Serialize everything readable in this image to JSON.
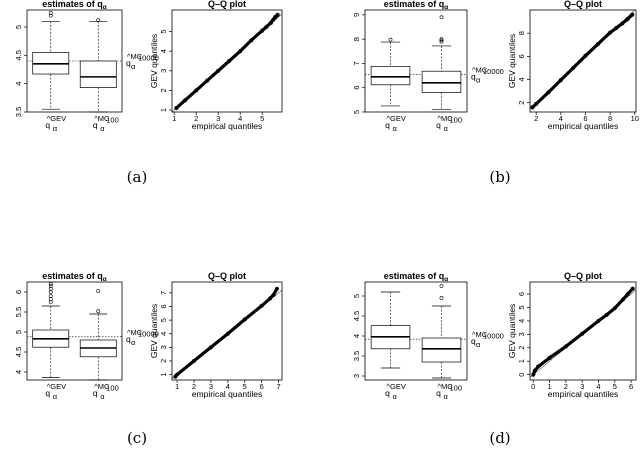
{
  "chart_data": [
    {
      "panel": "(a)",
      "boxplot": {
        "type": "box",
        "title": "estimates of q",
        "title_subscript": "α",
        "ylim": [
          3.5,
          5.3
        ],
        "yticks": [
          3.5,
          4.0,
          4.5,
          5.0
        ],
        "categories": [
          {
            "hat": "^GEV",
            "base": "q",
            "sub": "α"
          },
          {
            "hat": "^MC",
            "hat_sub": "100",
            "base": "q",
            "sub": "α"
          }
        ],
        "boxes": [
          {
            "whisker_low": 3.55,
            "q1": 4.17,
            "median": 4.35,
            "q3": 4.55,
            "whisker_high": 5.1,
            "outliers": [
              5.2,
              5.25
            ]
          },
          {
            "whisker_low": 3.5,
            "q1": 3.93,
            "median": 4.12,
            "q3": 4.4,
            "whisker_high": 5.1,
            "outliers": [
              5.12
            ]
          }
        ],
        "reference": {
          "value": 4.4,
          "label_hat": "^MC",
          "label_hat_sub": "10000",
          "label_base": "q",
          "label_sub": "α"
        }
      },
      "qq": {
        "type": "scatter",
        "title": "Q–Q plot",
        "xlabel": "empirical quantiles",
        "ylabel": "GEV quantiles",
        "xlim": [
          0.9,
          5.9
        ],
        "ylim": [
          0.9,
          6.1
        ],
        "xticks": [
          1,
          2,
          3,
          4,
          5
        ],
        "yticks": [
          1,
          2,
          3,
          4,
          5
        ],
        "x": [
          1.1,
          1.5,
          2.0,
          2.5,
          3.0,
          3.5,
          4.0,
          4.5,
          5.0,
          5.2,
          5.4,
          5.5,
          5.6,
          5.7
        ],
        "y": [
          1.1,
          1.5,
          2.0,
          2.5,
          3.0,
          3.5,
          4.0,
          4.55,
          5.05,
          5.25,
          5.45,
          5.6,
          5.75,
          5.85
        ]
      }
    },
    {
      "panel": "(b)",
      "boxplot": {
        "type": "box",
        "title": "estimates of q",
        "title_subscript": "α",
        "ylim": [
          5,
          9.2
        ],
        "yticks": [
          5,
          6,
          7,
          8,
          9
        ],
        "categories": [
          {
            "hat": "^GEV",
            "base": "q",
            "sub": "α"
          },
          {
            "hat": "^MC",
            "hat_sub": "100",
            "base": "q",
            "sub": "α"
          }
        ],
        "boxes": [
          {
            "whisker_low": 5.25,
            "q1": 6.12,
            "median": 6.45,
            "q3": 6.88,
            "whisker_high": 7.88,
            "outliers": [
              7.98
            ]
          },
          {
            "whisker_low": 5.1,
            "q1": 5.8,
            "median": 6.2,
            "q3": 6.68,
            "whisker_high": 7.72,
            "outliers": [
              7.9,
              7.95,
              8.0,
              8.9
            ]
          }
        ],
        "reference": {
          "value": 6.55,
          "label_hat": "^MC",
          "label_hat_sub": "10000",
          "label_base": "q",
          "label_sub": "α"
        }
      },
      "qq": {
        "type": "scatter",
        "title": "Q–Q plot",
        "xlabel": "empirical quantiles",
        "ylabel": "GEV quantiles",
        "xlim": [
          1.5,
          10.1
        ],
        "ylim": [
          1.2,
          10.0
        ],
        "xticks": [
          2,
          4,
          6,
          8,
          10
        ],
        "yticks": [
          2,
          4,
          6,
          8
        ],
        "x": [
          1.7,
          2.0,
          3.0,
          4.0,
          5.0,
          6.0,
          7.0,
          8.0,
          8.5,
          9.0,
          9.4,
          9.8
        ],
        "y": [
          1.6,
          1.9,
          2.9,
          3.95,
          5.0,
          6.05,
          7.05,
          8.05,
          8.45,
          8.85,
          9.2,
          9.6
        ]
      }
    },
    {
      "panel": "(c)",
      "boxplot": {
        "type": "box",
        "title": "estimates of q",
        "title_subscript": "α",
        "ylim": [
          3.8,
          6.25
        ],
        "yticks": [
          4.0,
          4.5,
          5.0,
          5.5,
          6.0
        ],
        "categories": [
          {
            "hat": "^GEV",
            "base": "q",
            "sub": "α"
          },
          {
            "hat": "^MC",
            "hat_sub": "100",
            "base": "q",
            "sub": "α"
          }
        ],
        "boxes": [
          {
            "whisker_low": 3.86,
            "q1": 4.62,
            "median": 4.83,
            "q3": 5.05,
            "whisker_high": 5.65,
            "outliers": [
              5.75,
              5.82,
              5.9,
              6.0,
              6.08,
              6.15,
              6.2
            ]
          },
          {
            "whisker_low": 3.8,
            "q1": 4.38,
            "median": 4.6,
            "q3": 4.8,
            "whisker_high": 5.45,
            "outliers": [
              5.52,
              6.02
            ]
          }
        ],
        "reference": {
          "value": 4.88,
          "label_hat": "^MC",
          "label_hat_sub": "10000",
          "label_base": "q",
          "label_sub": "α"
        }
      },
      "qq": {
        "type": "scatter",
        "title": "Q–Q plot",
        "xlabel": "empirical quantiles",
        "ylabel": "GEV quantiles",
        "xlim": [
          0.7,
          7.2
        ],
        "ylim": [
          0.6,
          7.8
        ],
        "xticks": [
          1,
          2,
          3,
          4,
          5,
          6,
          7
        ],
        "yticks": [
          1,
          2,
          3,
          4,
          5,
          6,
          7
        ],
        "x": [
          0.9,
          1.0,
          2.0,
          3.0,
          4.0,
          5.0,
          6.0,
          6.5,
          6.7,
          6.9
        ],
        "y": [
          0.85,
          1.0,
          2.0,
          3.0,
          4.0,
          5.05,
          6.05,
          6.6,
          6.85,
          7.3
        ]
      }
    },
    {
      "panel": "(d)",
      "boxplot": {
        "type": "box",
        "title": "estimates of q",
        "title_subscript": "α",
        "ylim": [
          2.9,
          5.35
        ],
        "yticks": [
          3.0,
          3.5,
          4.0,
          4.5,
          5.0
        ],
        "categories": [
          {
            "hat": "^GEV",
            "base": "q",
            "sub": "α"
          },
          {
            "hat": "^MC",
            "hat_sub": "100",
            "base": "q",
            "sub": "α"
          }
        ],
        "boxes": [
          {
            "whisker_low": 3.2,
            "q1": 3.68,
            "median": 3.98,
            "q3": 4.26,
            "whisker_high": 5.1,
            "outliers": []
          },
          {
            "whisker_low": 2.95,
            "q1": 3.35,
            "median": 3.68,
            "q3": 3.95,
            "whisker_high": 4.75,
            "outliers": [
              4.95,
              5.25
            ]
          }
        ],
        "reference": {
          "value": 3.92,
          "label_hat": "^MC",
          "label_hat_sub": "10000",
          "label_base": "q",
          "label_sub": "α"
        }
      },
      "qq": {
        "type": "scatter",
        "title": "Q–Q plot",
        "xlabel": "empirical quantiles",
        "ylabel": "GEV quantiles",
        "xlim": [
          -0.2,
          6.3
        ],
        "ylim": [
          -0.4,
          6.9
        ],
        "xticks": [
          0,
          1,
          2,
          3,
          4,
          5,
          6
        ],
        "yticks": [
          0,
          1,
          2,
          3,
          4,
          5,
          6
        ],
        "x": [
          0.0,
          0.1,
          0.3,
          1.0,
          2.0,
          3.0,
          4.0,
          4.5,
          5.0,
          5.5,
          5.8,
          6.1
        ],
        "y": [
          0.0,
          0.3,
          0.6,
          1.25,
          2.1,
          3.05,
          4.0,
          4.45,
          4.95,
          5.6,
          6.0,
          6.4
        ]
      }
    }
  ]
}
